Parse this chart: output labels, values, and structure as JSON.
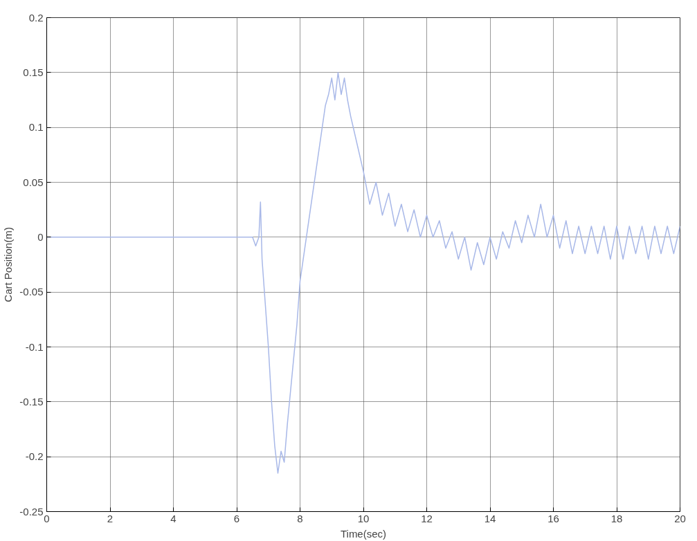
{
  "chart_data": {
    "type": "line",
    "xlabel": "Time(sec)",
    "ylabel": "Cart Position(m)",
    "x": [
      0,
      6.5,
      6.6,
      6.7,
      6.75,
      6.8,
      6.9,
      7.0,
      7.1,
      7.2,
      7.3,
      7.4,
      7.5,
      7.6,
      7.7,
      7.8,
      7.9,
      8.0,
      8.2,
      8.4,
      8.6,
      8.8,
      8.9,
      9.0,
      9.1,
      9.2,
      9.3,
      9.4,
      9.5,
      9.6,
      9.8,
      10.0,
      10.2,
      10.4,
      10.6,
      10.8,
      11.0,
      11.2,
      11.4,
      11.6,
      11.8,
      12.0,
      12.2,
      12.4,
      12.6,
      12.8,
      13.0,
      13.2,
      13.4,
      13.6,
      13.8,
      14.0,
      14.2,
      14.4,
      14.6,
      14.8,
      15.0,
      15.2,
      15.4,
      15.6,
      15.8,
      16.0,
      16.2,
      16.4,
      16.6,
      16.8,
      17.0,
      17.2,
      17.4,
      17.6,
      17.8,
      18.0,
      18.2,
      18.4,
      18.6,
      18.8,
      19.0,
      19.2,
      19.4,
      19.6,
      19.8,
      20.0
    ],
    "series": [
      {
        "color": "#a8b8e8",
        "values": [
          0,
          0,
          -0.008,
          0.0,
          0.032,
          -0.02,
          -0.06,
          -0.1,
          -0.15,
          -0.19,
          -0.215,
          -0.195,
          -0.205,
          -0.17,
          -0.14,
          -0.11,
          -0.08,
          -0.04,
          0.0,
          0.04,
          0.08,
          0.12,
          0.13,
          0.145,
          0.125,
          0.15,
          0.13,
          0.145,
          0.125,
          0.11,
          0.085,
          0.06,
          0.03,
          0.05,
          0.02,
          0.04,
          0.01,
          0.03,
          0.005,
          0.025,
          0.0,
          0.02,
          0.0,
          0.015,
          -0.01,
          0.005,
          -0.02,
          0.0,
          -0.03,
          -0.005,
          -0.025,
          0.0,
          -0.02,
          0.005,
          -0.01,
          0.015,
          -0.005,
          0.02,
          0.0,
          0.03,
          0.0,
          0.02,
          -0.01,
          0.015,
          -0.015,
          0.01,
          -0.015,
          0.01,
          -0.015,
          0.01,
          -0.02,
          0.01,
          -0.02,
          0.01,
          -0.015,
          0.01,
          -0.02,
          0.01,
          -0.015,
          0.01,
          -0.015,
          0.01
        ]
      }
    ],
    "xlim": [
      0,
      20
    ],
    "ylim": [
      -0.25,
      0.2
    ],
    "xticks": [
      0,
      2,
      4,
      6,
      8,
      10,
      12,
      14,
      16,
      18,
      20
    ],
    "yticks": [
      -0.25,
      -0.2,
      -0.15,
      -0.1,
      -0.05,
      0,
      0.05,
      0.1,
      0.15,
      0.2
    ],
    "grid": true,
    "marker": "none",
    "line_style": "solid"
  }
}
